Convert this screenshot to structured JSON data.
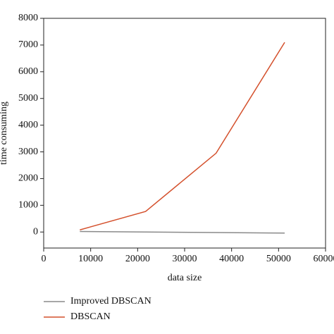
{
  "chart_data": {
    "type": "line",
    "x_label": "data size",
    "y_label": "time consuming",
    "x": [
      7700,
      21700,
      36700,
      51300
    ],
    "series": [
      {
        "name": "Improved DBSCAN",
        "color": "#8a8a8a",
        "values": [
          20,
          0,
          -20,
          -40
        ]
      },
      {
        "name": "DBSCAN",
        "color": "#d4502c",
        "values": [
          80,
          770,
          2950,
          7100
        ]
      }
    ],
    "xlim": [
      0,
      60000
    ],
    "xticks": [
      0,
      10000,
      20000,
      30000,
      40000,
      50000,
      60000
    ],
    "ylim": [
      -600,
      8000
    ],
    "yticks": [
      0,
      1000,
      2000,
      3000,
      4000,
      5000,
      6000,
      7000,
      8000
    ],
    "legend": "bottom"
  }
}
